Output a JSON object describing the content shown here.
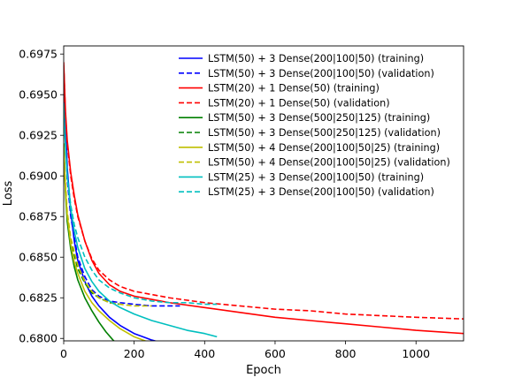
{
  "chart_data": {
    "type": "line",
    "title": "",
    "xlabel": "Epoch",
    "ylabel": "Loss",
    "xlim": [
      0,
      1135
    ],
    "ylim": [
      0.67985,
      0.698
    ],
    "xticks": [
      0,
      200,
      400,
      600,
      800,
      1000
    ],
    "xtick_labels": [
      "0",
      "200",
      "400",
      "600",
      "800",
      "1000"
    ],
    "yticks": [
      0.68,
      0.6825,
      0.685,
      0.6875,
      0.69,
      0.6925,
      0.695,
      0.6975
    ],
    "ytick_labels": [
      "0.6800",
      "0.6825",
      "0.6850",
      "0.6875",
      "0.6900",
      "0.6925",
      "0.6950",
      "0.6975"
    ],
    "grid": false,
    "legend_position": "top-right",
    "series": [
      {
        "name": "LSTM(50) + 3 Dense(200|100|50) (training)",
        "color": "#0000ff",
        "style": "solid",
        "x": [
          0,
          10,
          20,
          30,
          40,
          60,
          80,
          100,
          130,
          160,
          200,
          250,
          300,
          330
        ],
        "y": [
          0.6965,
          0.6905,
          0.6878,
          0.686,
          0.6848,
          0.6835,
          0.6826,
          0.682,
          0.6813,
          0.6808,
          0.6803,
          0.6799,
          0.6796,
          0.6794
        ]
      },
      {
        "name": "LSTM(50) + 3 Dense(200|100|50) (validation)",
        "color": "#0000ff",
        "style": "dashed",
        "x": [
          0,
          10,
          20,
          40,
          60,
          80,
          100,
          130,
          160,
          200,
          250,
          300,
          330
        ],
        "y": [
          0.695,
          0.6898,
          0.6875,
          0.685,
          0.6838,
          0.683,
          0.6826,
          0.6823,
          0.6822,
          0.6821,
          0.682,
          0.682,
          0.682
        ]
      },
      {
        "name": "LSTM(20) + 1 Dense(50) (training)",
        "color": "#ff0000",
        "style": "solid",
        "x": [
          0,
          5,
          10,
          20,
          30,
          40,
          60,
          80,
          100,
          130,
          160,
          200,
          250,
          300,
          400,
          500,
          600,
          700,
          800,
          900,
          1000,
          1135
        ],
        "y": [
          0.697,
          0.694,
          0.6922,
          0.6902,
          0.6888,
          0.6876,
          0.686,
          0.6848,
          0.684,
          0.6833,
          0.6829,
          0.6826,
          0.6824,
          0.6822,
          0.6819,
          0.6816,
          0.6813,
          0.6811,
          0.6809,
          0.6807,
          0.6805,
          0.6803
        ]
      },
      {
        "name": "LSTM(20) + 1 Dense(50) (validation)",
        "color": "#ff0000",
        "style": "dashed",
        "x": [
          0,
          5,
          10,
          20,
          30,
          40,
          60,
          80,
          100,
          130,
          160,
          200,
          250,
          300,
          400,
          500,
          600,
          700,
          800,
          900,
          1000,
          1135
        ],
        "y": [
          0.6968,
          0.6938,
          0.692,
          0.69,
          0.6886,
          0.6875,
          0.686,
          0.6849,
          0.6842,
          0.6836,
          0.6832,
          0.6829,
          0.6827,
          0.6825,
          0.6822,
          0.682,
          0.6818,
          0.6817,
          0.6815,
          0.6814,
          0.6813,
          0.6812
        ]
      },
      {
        "name": "LSTM(50) + 3 Dense(500|250|125) (training)",
        "color": "#007f00",
        "style": "solid",
        "x": [
          0,
          5,
          10,
          20,
          30,
          40,
          60,
          80,
          100,
          120,
          140,
          160
        ],
        "y": [
          0.692,
          0.689,
          0.6872,
          0.6855,
          0.6844,
          0.6836,
          0.6825,
          0.6817,
          0.681,
          0.6804,
          0.6799,
          0.6795
        ]
      },
      {
        "name": "LSTM(50) + 3 Dense(500|250|125) (validation)",
        "color": "#007f00",
        "style": "dashed",
        "x": [
          0,
          10,
          20,
          40,
          60,
          80,
          100,
          130,
          160
        ],
        "y": [
          0.6915,
          0.6875,
          0.686,
          0.6843,
          0.6834,
          0.6828,
          0.6825,
          0.6822,
          0.6821
        ]
      },
      {
        "name": "LSTM(50) + 4 Dense(200|100|50|25) (training)",
        "color": "#bfbf00",
        "style": "solid",
        "x": [
          0,
          5,
          10,
          20,
          30,
          40,
          60,
          80,
          100,
          130,
          160,
          200,
          250
        ],
        "y": [
          0.692,
          0.6892,
          0.6876,
          0.6858,
          0.6847,
          0.684,
          0.6829,
          0.6822,
          0.6817,
          0.6811,
          0.6806,
          0.6801,
          0.6797
        ]
      },
      {
        "name": "LSTM(50) + 4 Dense(200|100|50|25) (validation)",
        "color": "#bfbf00",
        "style": "dashed",
        "x": [
          0,
          10,
          20,
          40,
          60,
          80,
          100,
          130,
          160,
          200,
          250
        ],
        "y": [
          0.6915,
          0.6878,
          0.6862,
          0.6845,
          0.6835,
          0.6829,
          0.6825,
          0.6822,
          0.6821,
          0.682,
          0.682
        ]
      },
      {
        "name": "LSTM(25) + 3 Dense(200|100|50) (training)",
        "color": "#00bfbf",
        "style": "solid",
        "x": [
          0,
          5,
          10,
          20,
          30,
          40,
          60,
          80,
          100,
          130,
          160,
          200,
          250,
          300,
          350,
          400,
          435
        ],
        "y": [
          0.6945,
          0.6918,
          0.69,
          0.688,
          0.6866,
          0.6856,
          0.6843,
          0.6835,
          0.6829,
          0.6823,
          0.6819,
          0.6815,
          0.6811,
          0.6808,
          0.6805,
          0.6803,
          0.6801
        ]
      },
      {
        "name": "LSTM(25) + 3 Dense(200|100|50) (validation)",
        "color": "#00bfbf",
        "style": "dashed",
        "x": [
          0,
          10,
          20,
          30,
          40,
          60,
          80,
          100,
          130,
          160,
          200,
          250,
          300,
          350,
          400,
          435
        ],
        "y": [
          0.694,
          0.69,
          0.6882,
          0.687,
          0.6862,
          0.685,
          0.6842,
          0.6836,
          0.6831,
          0.6828,
          0.6825,
          0.6823,
          0.6822,
          0.6822,
          0.6821,
          0.6821
        ]
      }
    ]
  }
}
